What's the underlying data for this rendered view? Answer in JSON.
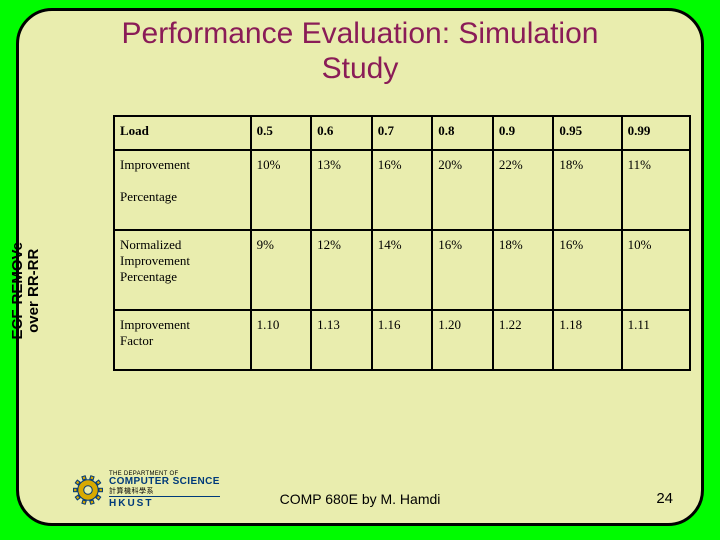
{
  "title_line1": "Performance Evaluation: Simulation",
  "title_line2": "Study",
  "sidebar_label_line1": "ECF-REMOVe",
  "sidebar_label_line2": "over RR-RR",
  "table": {
    "header": [
      "Load",
      "0.5",
      "0.6",
      "0.7",
      "0.8",
      "0.9",
      "0.95",
      "0.99"
    ],
    "rows": [
      {
        "label_lines": [
          "Improvement",
          "",
          "Percentage"
        ],
        "cells": [
          "10%",
          "13%",
          "16%",
          "20%",
          "22%",
          "18%",
          "11%"
        ],
        "class": "tall"
      },
      {
        "label_lines": [
          "Normalized",
          "Improvement",
          "Percentage"
        ],
        "cells": [
          "9%",
          "12%",
          "14%",
          "16%",
          "18%",
          "16%",
          "10%"
        ],
        "class": "tall"
      },
      {
        "label_lines": [
          "Improvement",
          "Factor"
        ],
        "cells": [
          "1.10",
          "1.13",
          "1.16",
          "1.20",
          "1.22",
          "1.18",
          "1.11"
        ],
        "class": "mid"
      }
    ]
  },
  "logo": {
    "small1": "THE DEPARTMENT OF",
    "big1": "COMPUTER SCIENCE",
    "small2": "計算機科學系",
    "big2": "HKUST",
    "gear_color": "#d8a900",
    "gear_stroke": "#003a7a"
  },
  "footer": "COMP 680E by M. Hamdi",
  "page_number": "24",
  "colors": {
    "slide_bg": "#00fc00",
    "panel_bg": "#e9edae",
    "title": "#8a1c57"
  }
}
